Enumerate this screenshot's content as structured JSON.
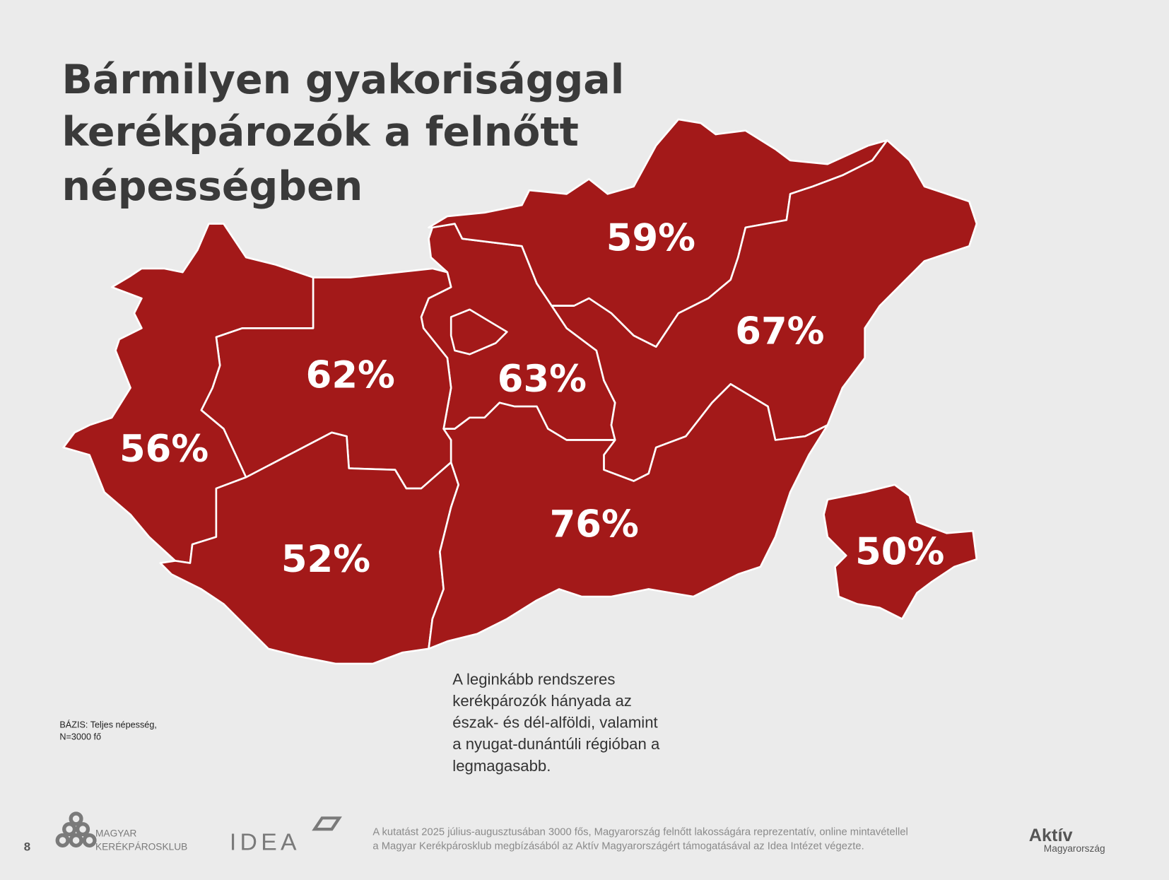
{
  "title": {
    "lines": [
      "Bármilyen gyakorisággal",
      "kerékpározók a felnőtt",
      "népességben"
    ]
  },
  "map": {
    "regions": [
      {
        "label": "59%"
      },
      {
        "label": "67%"
      },
      {
        "label": "62%"
      },
      {
        "label": "63%"
      },
      {
        "label": "56%"
      },
      {
        "label": "76%"
      },
      {
        "label": "52%"
      },
      {
        "label": "50%"
      }
    ]
  },
  "note": {
    "lines": [
      "A leginkább rendszeres",
      "kerékpározók hányada az",
      "észak- és dél-alföldi, valamint",
      "a nyugat-dunántúli régióban a",
      "legmagasabb."
    ]
  },
  "base": {
    "lines": [
      "BÁZIS: Teljes népesség,",
      "N=3000 fő"
    ]
  },
  "footer": {
    "page_number": "8",
    "logos": {
      "kerekparosklub": [
        "MAGYAR",
        "KERÉKPÁROSKLUB"
      ],
      "idea": "IDEA",
      "aktiv": [
        "Aktív",
        "Magyarország"
      ]
    },
    "credit": [
      "A kutatást 2025 július-augusztusában 3000 fős, Magyarország felnőtt lakosságára reprezentatív, online mintavétellel",
      "a Magyar Kerékpárosklub megbízásából az Aktív Magyarországért támogatásával az Idea Intézet végezte."
    ]
  }
}
